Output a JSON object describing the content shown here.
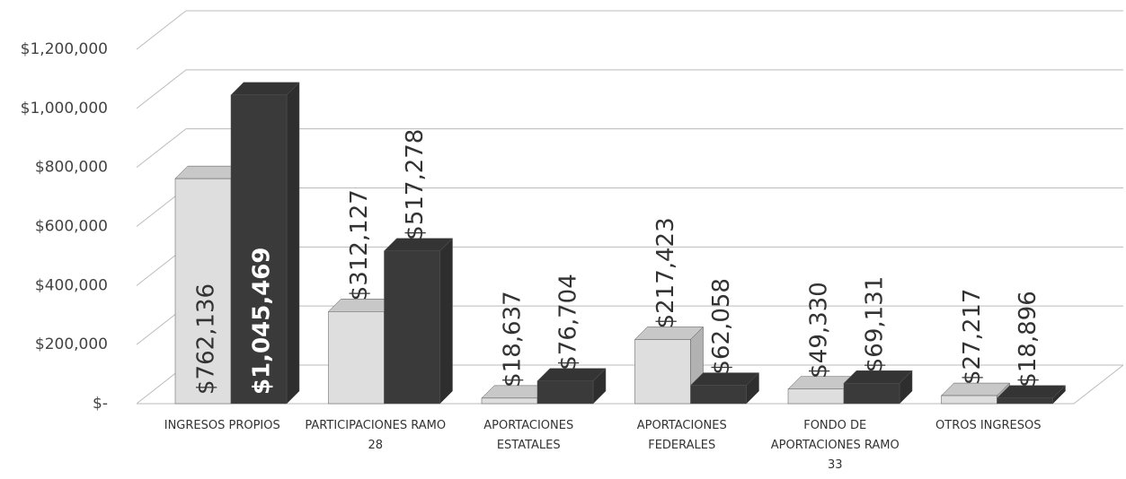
{
  "chart_data": {
    "type": "bar3d",
    "categories": [
      "INGRESOS PROPIOS",
      "PARTICIPACIONES RAMO 28",
      "APORTACIONES ESTATALES",
      "APORTACIONES FEDERALES",
      "FONDO DE APORTACIONES RAMO 33",
      "OTROS INGRESOS"
    ],
    "series": [
      {
        "color": "#dedede",
        "values": [
          762136,
          312127,
          18637,
          217423,
          49330,
          27217
        ],
        "value_labels": [
          "$762,136",
          "$312,127",
          "$18,637",
          "$217,423",
          "$49,330",
          "$27,217"
        ]
      },
      {
        "color": "#3a3a3a",
        "values": [
          1045469,
          517278,
          76704,
          62058,
          69131,
          18896
        ],
        "value_labels": [
          "$1,045,469",
          "$517,278",
          "$76,704",
          "$62,058",
          "$69,131",
          "$18,896"
        ]
      }
    ],
    "ylim": [
      0,
      1200000
    ],
    "yticks": [
      {
        "value": 0,
        "label": "$-"
      },
      {
        "value": 200000,
        "label": "$200,000"
      },
      {
        "value": 400000,
        "label": "$400,000"
      },
      {
        "value": 600000,
        "label": "$600,000"
      },
      {
        "value": 800000,
        "label": "$800,000"
      },
      {
        "value": 1000000,
        "label": "$1,000,000"
      },
      {
        "value": 1200000,
        "label": "$1,200,000"
      }
    ],
    "grid": true
  }
}
